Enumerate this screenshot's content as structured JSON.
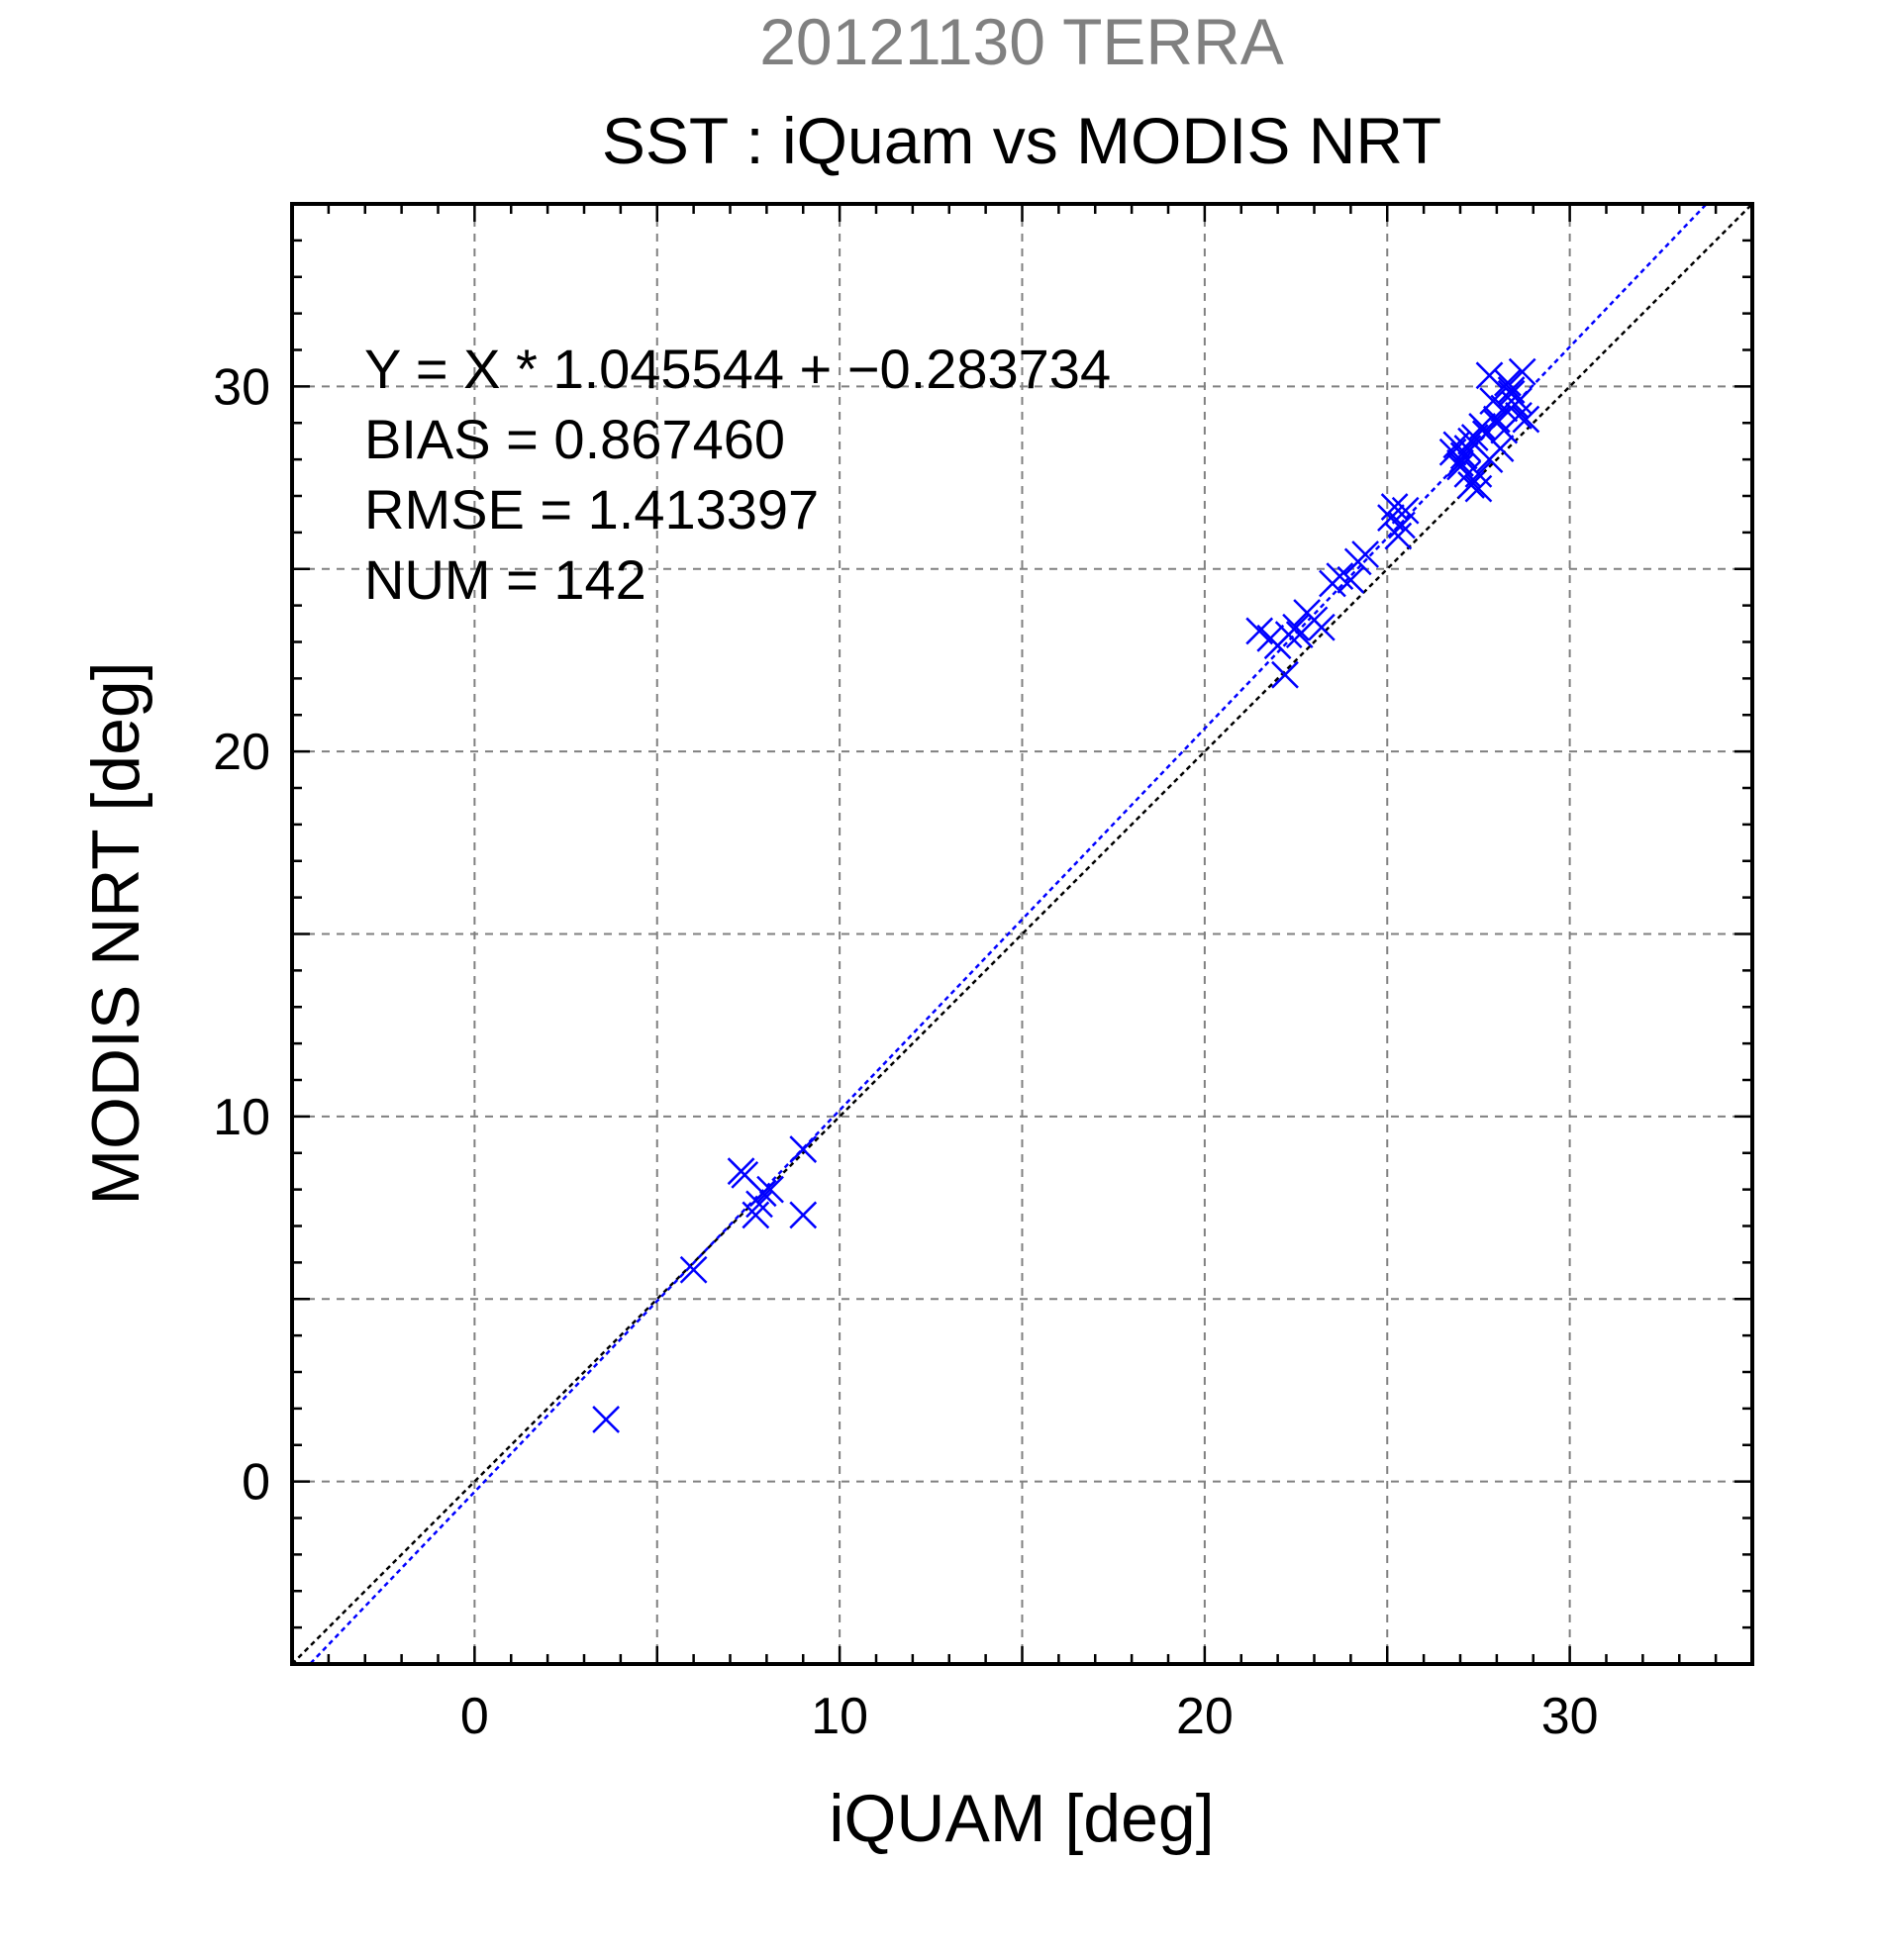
{
  "chart_data": {
    "type": "scatter",
    "supertitle": "20121130 TERRA",
    "title": "SST : iQuam vs MODIS NRT",
    "xlabel": "iQUAM [deg]",
    "ylabel": "MODIS NRT [deg]",
    "xlim": [
      -5,
      35
    ],
    "ylim": [
      -5,
      35
    ],
    "xticks": [
      0,
      10,
      20,
      30
    ],
    "yticks": [
      0,
      10,
      20,
      30
    ],
    "grid": true,
    "colors": {
      "points": "#0000ff",
      "fit_line": "#0000ff",
      "identity_line": "#000000",
      "supertitle": "#808080"
    },
    "stats": [
      "Y = X * 1.045544 + −0.283734",
      "BIAS = 0.867460",
      "RMSE = 1.413397",
      "NUM = 142"
    ],
    "fit": {
      "slope": 1.045544,
      "intercept": -0.283734
    },
    "series": [
      {
        "marker": "x",
        "x": [
          3.6,
          6.0,
          7.3,
          7.4,
          7.7,
          7.8,
          7.9,
          8.1,
          9.0,
          9.0,
          21.5,
          21.8,
          22.0,
          22.2,
          22.3,
          22.5,
          22.6,
          22.8,
          23.0,
          23.2,
          23.5,
          23.7,
          24.0,
          24.2,
          24.4,
          25.1,
          25.2,
          25.3,
          25.4,
          25.5,
          26.8,
          26.9,
          27.0,
          27.1,
          27.2,
          27.3,
          27.4,
          27.5,
          27.6,
          27.7,
          27.8,
          27.9,
          28.0,
          28.1,
          28.2,
          28.3,
          28.4,
          28.5,
          28.6,
          28.7,
          28.8,
          27.0,
          27.3,
          28.0,
          28.4,
          27.8,
          28.6,
          27.5,
          28.2,
          27.2
        ],
        "y": [
          1.7,
          5.8,
          8.5,
          8.4,
          7.3,
          7.6,
          7.9,
          8.0,
          9.1,
          7.3,
          23.3,
          23.1,
          22.9,
          22.1,
          23.2,
          23.4,
          23.2,
          23.8,
          23.6,
          23.4,
          24.6,
          24.8,
          24.7,
          25.2,
          25.4,
          26.4,
          26.7,
          25.9,
          26.2,
          26.6,
          28.2,
          28.4,
          27.9,
          28.1,
          27.6,
          27.3,
          28.6,
          27.2,
          28.9,
          28.7,
          30.3,
          29.6,
          29.1,
          28.3,
          29.4,
          30.1,
          29.8,
          29.5,
          29.2,
          30.4,
          29.1,
          27.8,
          28.5,
          29.0,
          29.9,
          28.0,
          29.6,
          27.6,
          28.8,
          28.3
        ]
      }
    ]
  }
}
